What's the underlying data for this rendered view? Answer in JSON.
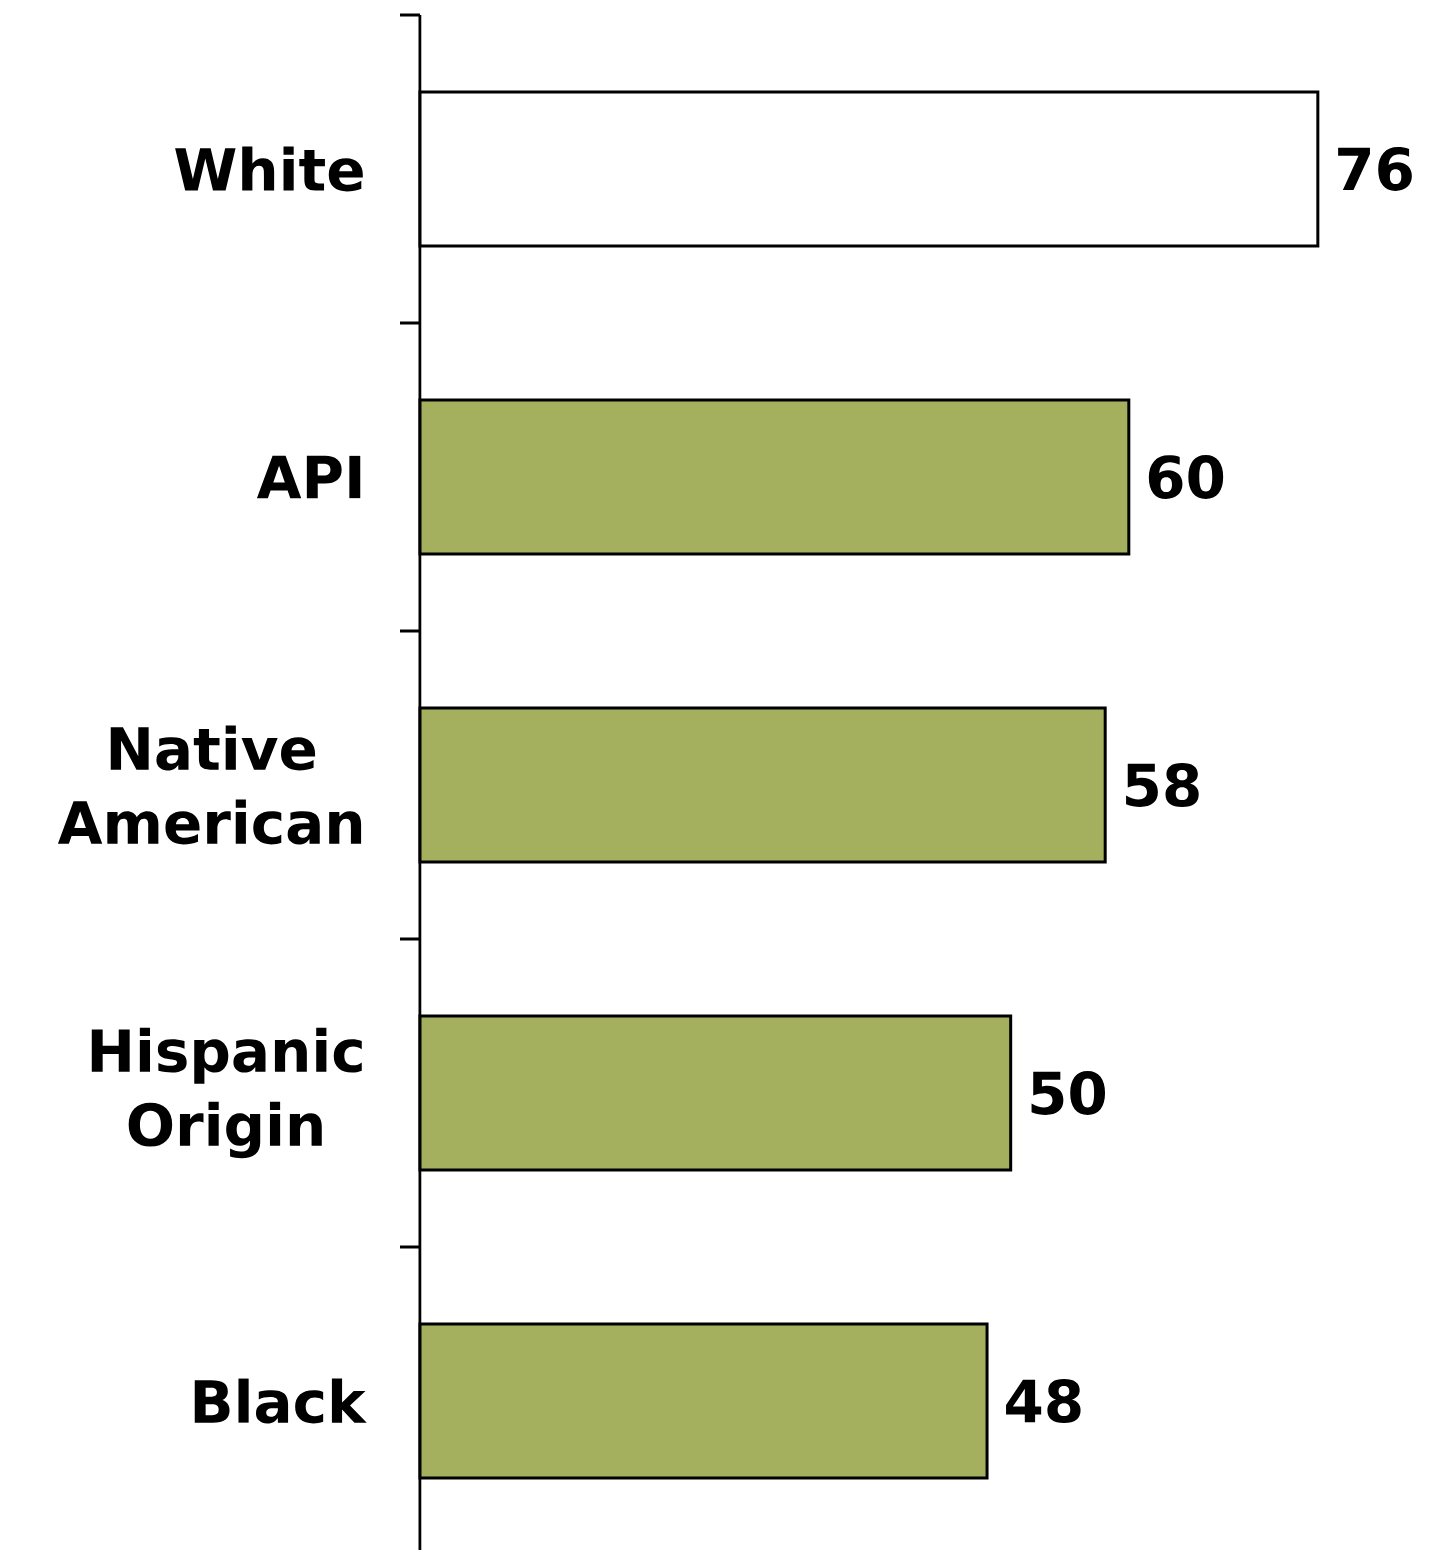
{
  "chart_data": {
    "type": "bar",
    "orientation": "horizontal",
    "categories": [
      "White",
      "API",
      "Native American",
      "Hispanic Origin",
      "Black"
    ],
    "values": [
      76,
      60,
      58,
      50,
      48
    ],
    "colors": [
      "#ffffff",
      "#a5b05e",
      "#a5b05e",
      "#a5b05e",
      "#a5b05e"
    ],
    "data_labels": true
  }
}
